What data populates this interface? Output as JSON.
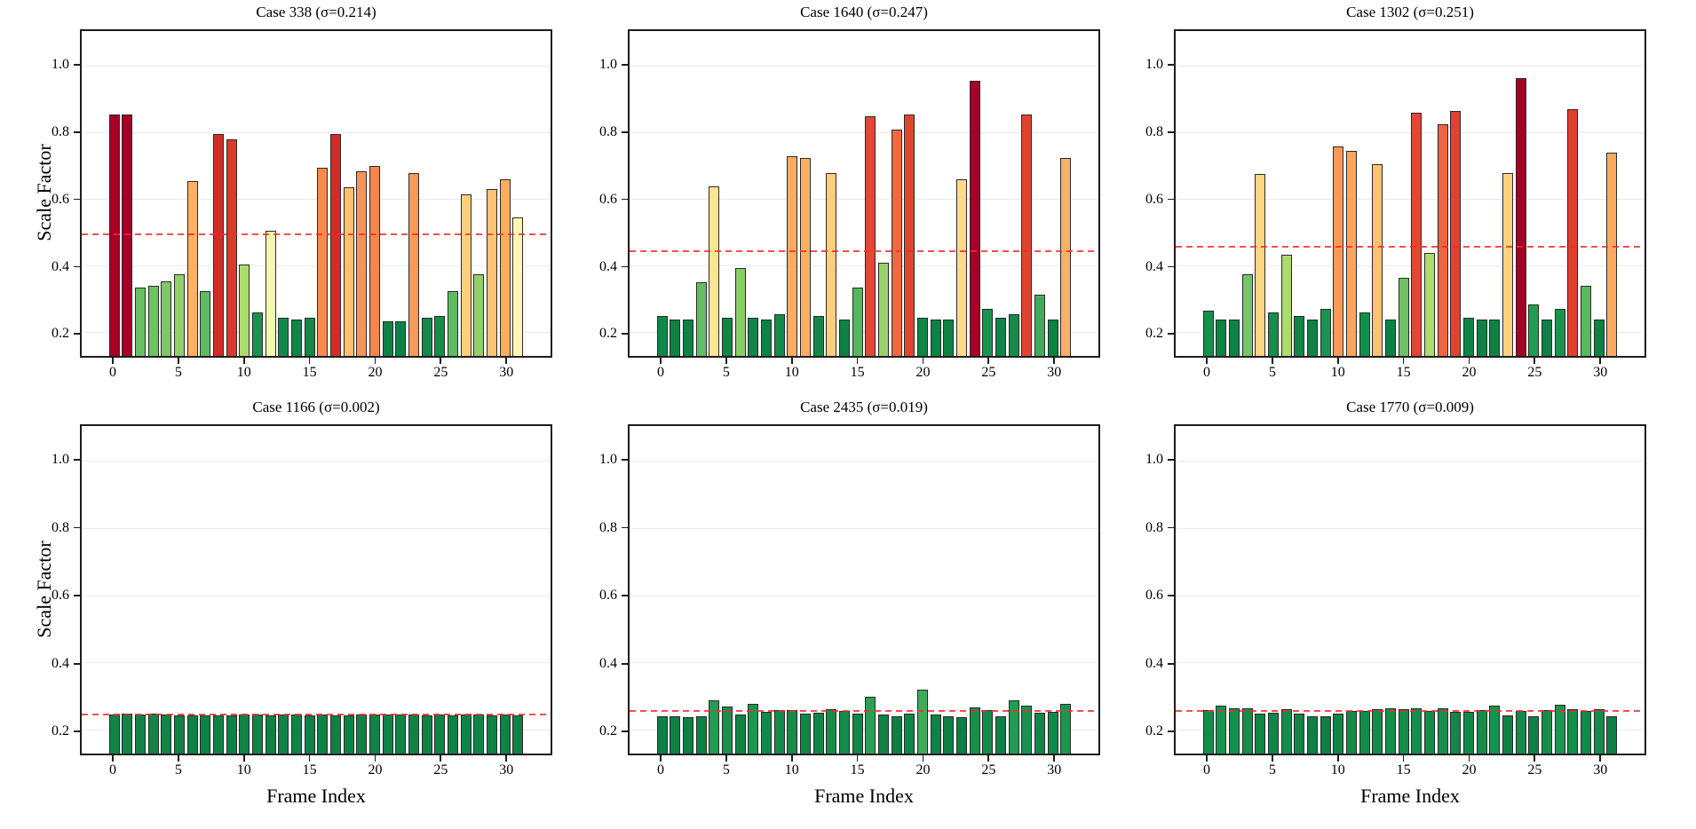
{
  "figure": {
    "background": "#ffffff",
    "mean_line_color": "#ff2626",
    "bar_edge_color": "#2a2a2a",
    "gridline_color": "#ebebeb",
    "spine_color": "#1c1c1c"
  },
  "axes": {
    "xlabel": "Frame Index",
    "ylabel": "Scale Factor",
    "ytick_labels": [
      "1.0",
      "0.8",
      "0.6",
      "0.4",
      "0.2"
    ],
    "ytick_values": [
      1.0,
      0.8,
      0.6,
      0.4,
      0.2
    ],
    "xtick_values": [
      0,
      5,
      10,
      15,
      20,
      25,
      30
    ],
    "ylim": [
      0.13,
      1.105
    ],
    "xlim": [
      -2.5,
      33.5
    ],
    "grid": true
  },
  "colormap": {
    "name": "RdYlGn_r",
    "stops": [
      "#006837",
      "#1a9850",
      "#66bd63",
      "#a6d96a",
      "#d9ef8b",
      "#ffffbf",
      "#fee08b",
      "#fdae61",
      "#f46d43",
      "#d73027",
      "#a50026"
    ]
  },
  "chart_data": [
    {
      "type": "bar",
      "title": "Case 338 (σ=0.214)",
      "case_id": 338,
      "sigma": 0.214,
      "mean": 0.496,
      "color_scale": {
        "vmin": 0.2,
        "vmax": 0.855
      },
      "values": [
        0.855,
        0.855,
        0.335,
        0.34,
        0.355,
        0.375,
        0.655,
        0.325,
        0.795,
        0.78,
        0.405,
        0.26,
        0.505,
        0.245,
        0.24,
        0.245,
        0.695,
        0.795,
        0.635,
        0.685,
        0.7,
        0.235,
        0.235,
        0.68,
        0.245,
        0.25,
        0.325,
        0.615,
        0.375,
        0.63,
        0.66,
        0.545
      ]
    },
    {
      "type": "bar",
      "title": "Case 1640 (σ=0.247)",
      "case_id": 1640,
      "sigma": 0.247,
      "mean": 0.445,
      "color_scale": {
        "vmin": 0.2,
        "vmax": 0.955
      },
      "values": [
        0.25,
        0.24,
        0.24,
        0.35,
        0.64,
        0.245,
        0.395,
        0.245,
        0.24,
        0.255,
        0.73,
        0.725,
        0.25,
        0.68,
        0.24,
        0.335,
        0.85,
        0.41,
        0.81,
        0.855,
        0.245,
        0.24,
        0.24,
        0.66,
        0.955,
        0.27,
        0.245,
        0.255,
        0.855,
        0.315,
        0.24,
        0.725
      ]
    },
    {
      "type": "bar",
      "title": "Case 1302 (σ=0.251)",
      "case_id": 1302,
      "sigma": 0.251,
      "mean": 0.458,
      "color_scale": {
        "vmin": 0.2,
        "vmax": 0.965
      },
      "values": [
        0.265,
        0.24,
        0.24,
        0.375,
        0.675,
        0.26,
        0.435,
        0.25,
        0.24,
        0.27,
        0.76,
        0.745,
        0.26,
        0.705,
        0.24,
        0.365,
        0.86,
        0.44,
        0.825,
        0.865,
        0.245,
        0.24,
        0.24,
        0.68,
        0.965,
        0.285,
        0.24,
        0.27,
        0.87,
        0.34,
        0.24,
        0.74
      ]
    },
    {
      "type": "bar",
      "title": "Case 1166 (σ=0.002)",
      "case_id": 1166,
      "sigma": 0.002,
      "mean": 0.245,
      "color_scale": {
        "vmin": 0.2,
        "vmax": 1.0
      },
      "values": [
        0.246,
        0.248,
        0.247,
        0.248,
        0.246,
        0.244,
        0.243,
        0.244,
        0.243,
        0.244,
        0.245,
        0.246,
        0.244,
        0.245,
        0.245,
        0.244,
        0.245,
        0.244,
        0.244,
        0.245,
        0.246,
        0.245,
        0.246,
        0.245,
        0.244,
        0.246,
        0.244,
        0.245,
        0.246,
        0.244,
        0.245,
        0.244
      ]
    },
    {
      "type": "bar",
      "title": "Case 2435 (σ=0.019)",
      "case_id": 2435,
      "sigma": 0.019,
      "mean": 0.258,
      "color_scale": {
        "vmin": 0.2,
        "vmax": 1.0
      },
      "values": [
        0.24,
        0.24,
        0.238,
        0.24,
        0.288,
        0.27,
        0.245,
        0.278,
        0.255,
        0.26,
        0.26,
        0.25,
        0.252,
        0.262,
        0.258,
        0.25,
        0.298,
        0.245,
        0.24,
        0.248,
        0.32,
        0.245,
        0.24,
        0.238,
        0.268,
        0.26,
        0.24,
        0.288,
        0.272,
        0.252,
        0.255,
        0.278
      ]
    },
    {
      "type": "bar",
      "title": "Case 1770 (σ=0.009)",
      "case_id": 1770,
      "sigma": 0.009,
      "mean": 0.257,
      "color_scale": {
        "vmin": 0.2,
        "vmax": 1.0
      },
      "values": [
        0.26,
        0.272,
        0.266,
        0.264,
        0.25,
        0.252,
        0.262,
        0.248,
        0.24,
        0.24,
        0.248,
        0.256,
        0.258,
        0.262,
        0.264,
        0.262,
        0.264,
        0.258,
        0.265,
        0.254,
        0.253,
        0.26,
        0.272,
        0.244,
        0.256,
        0.242,
        0.26,
        0.276,
        0.262,
        0.256,
        0.262,
        0.24
      ]
    }
  ]
}
